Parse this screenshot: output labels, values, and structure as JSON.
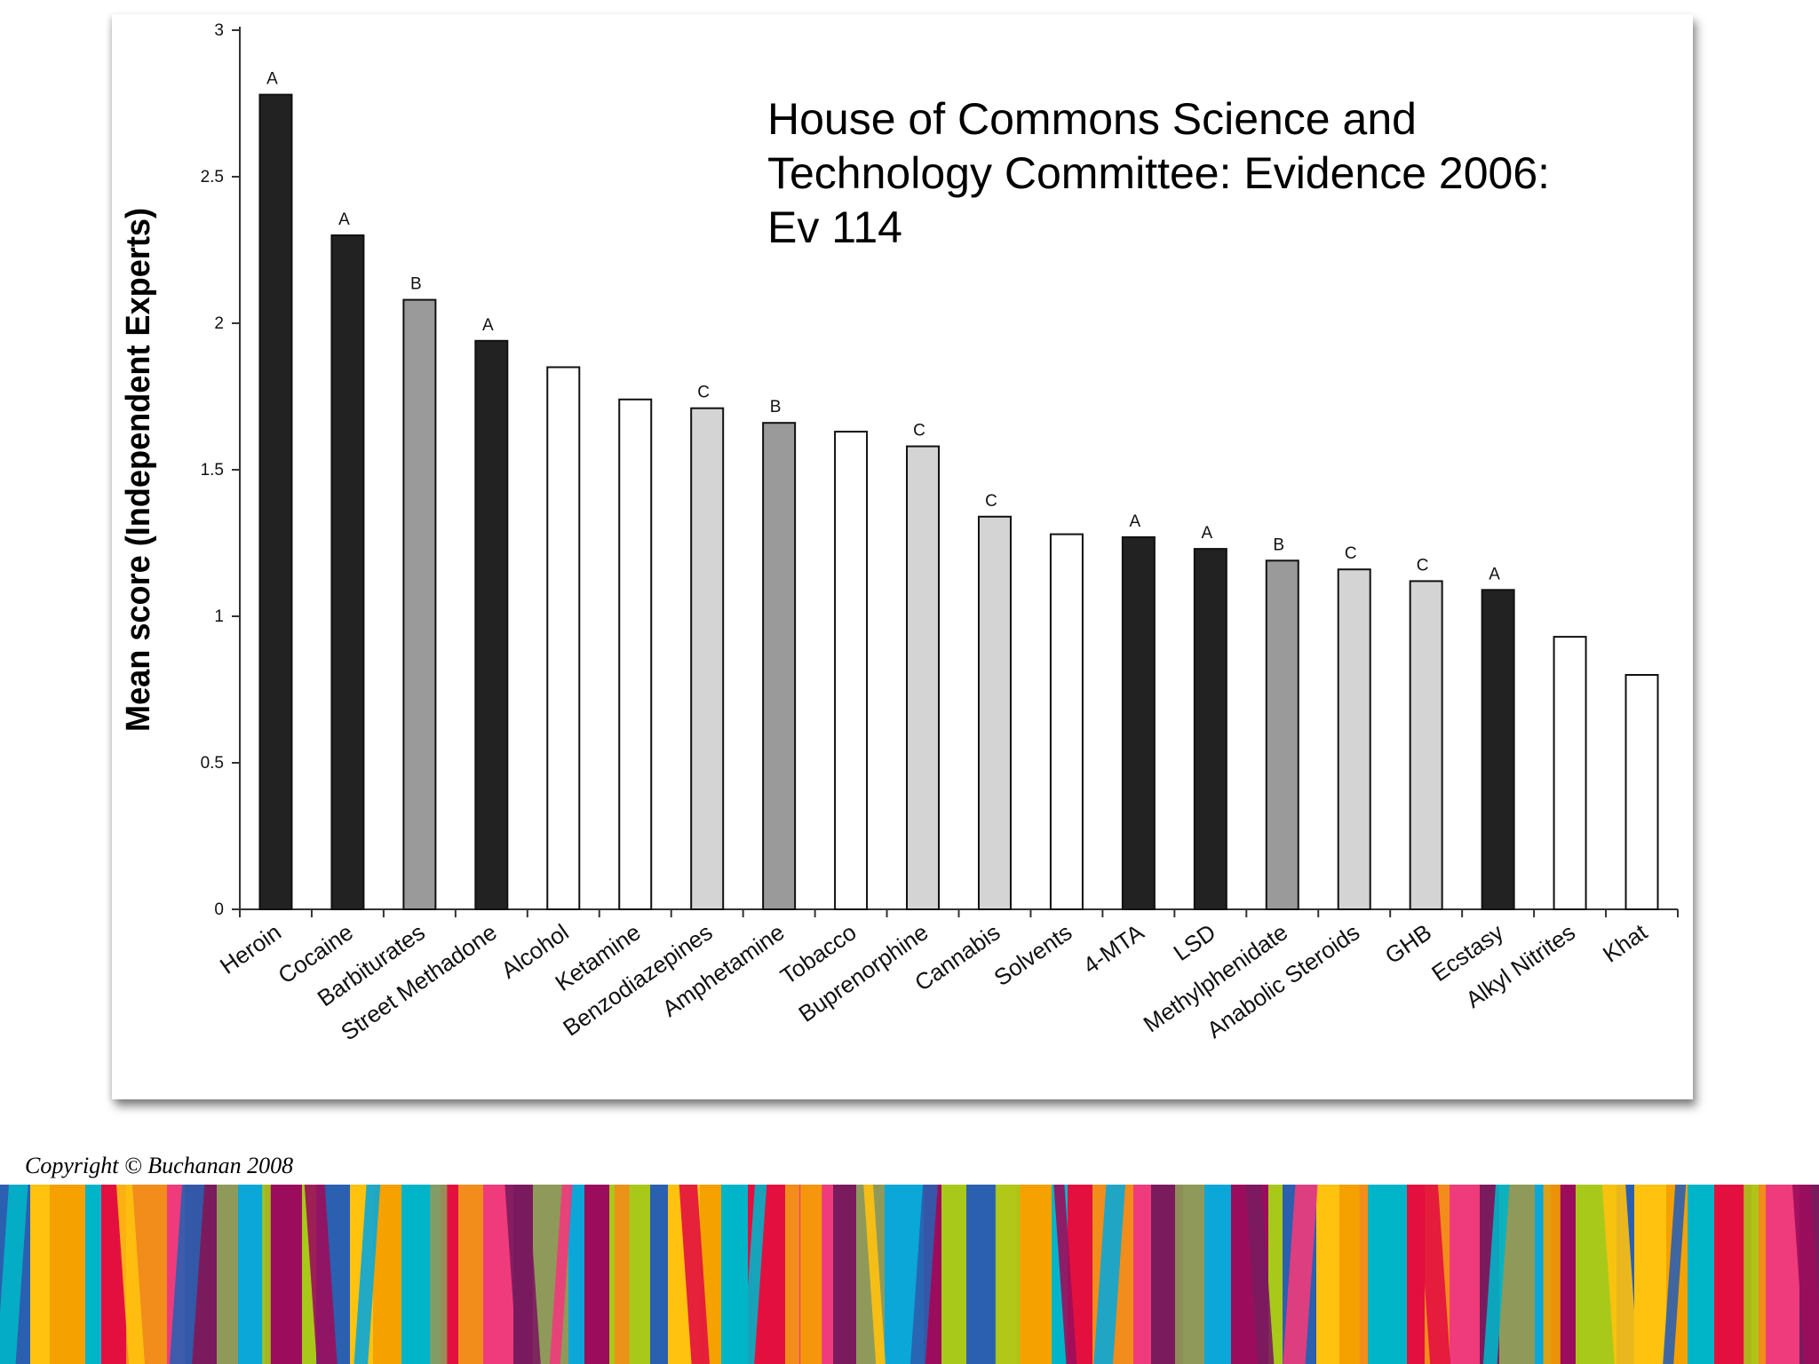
{
  "chart_data": {
    "type": "bar",
    "title": "House of Commons Science and\nTechnology Committee: Evidence 2006:\nEv 114",
    "ylabel": "Mean score (Independent Experts)",
    "xlabel": "",
    "ylim": [
      0,
      3
    ],
    "yticks": [
      0,
      0.5,
      1,
      1.5,
      2,
      2.5,
      3
    ],
    "ytick_labels": [
      "0",
      "0.5",
      "1",
      "1.5",
      "2",
      "2.5",
      "3"
    ],
    "categories": [
      "Heroin",
      "Cocaine",
      "Barbiturates",
      "Street Methadone",
      "Alcohol",
      "Ketamine",
      "Benzodiazepines",
      "Amphetamine",
      "Tobacco",
      "Buprenorphine",
      "Cannabis",
      "Solvents",
      "4-MTA",
      "LSD",
      "Methylphenidate",
      "Anabolic Steroids",
      "GHB",
      "Ecstasy",
      "Alkyl Nitrites",
      "Khat"
    ],
    "values": [
      2.78,
      2.3,
      2.08,
      1.94,
      1.85,
      1.74,
      1.71,
      1.66,
      1.63,
      1.58,
      1.34,
      1.28,
      1.27,
      1.23,
      1.19,
      1.16,
      1.12,
      1.09,
      0.93,
      0.8
    ],
    "group_labels": [
      "A",
      "A",
      "B",
      "A",
      "",
      "",
      "C",
      "B",
      "",
      "C",
      "C",
      "",
      "A",
      "A",
      "B",
      "C",
      "C",
      "A",
      "",
      ""
    ],
    "group_colors": {
      "A": "#222222",
      "B": "#9a9a9a",
      "C": "#d4d4d4",
      "none": "#ffffff"
    },
    "grid": false,
    "legend": "none"
  },
  "footer": {
    "copyright": "Copyright © Buchanan 2008",
    "stripe_colors": [
      "#2b5fb0",
      "#f28c1a",
      "#9b0d5c",
      "#00b5c8",
      "#8f9a5a",
      "#ffc20e",
      "#ef3b7b",
      "#a9c91a",
      "#e3103f",
      "#0aa7d8",
      "#f5a100",
      "#7a1b5e"
    ]
  }
}
